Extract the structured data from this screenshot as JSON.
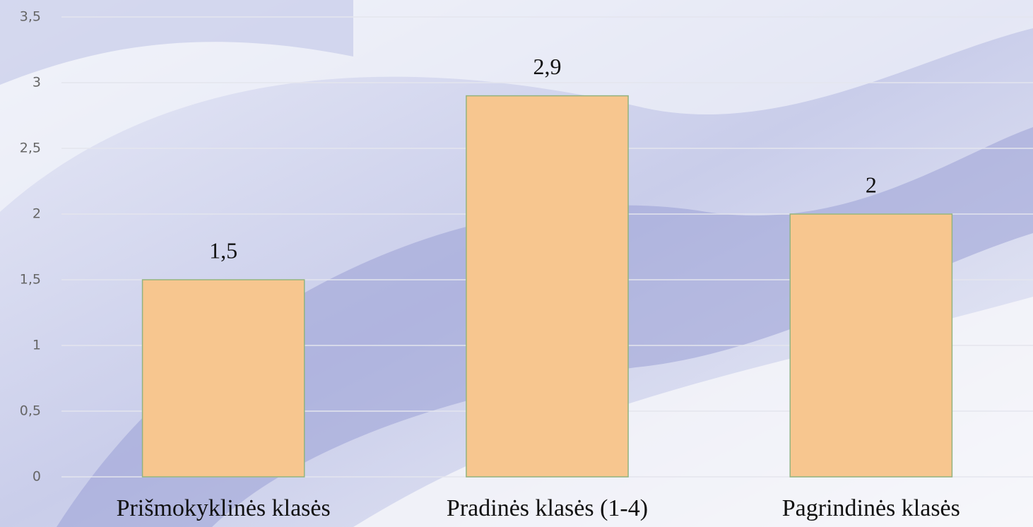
{
  "chart_data": {
    "type": "bar",
    "categories": [
      "Prišmokyklinės klasės",
      "Pradinės klasės (1-4)",
      "Pagrindinės klasės"
    ],
    "values": [
      1.5,
      2.9,
      2
    ],
    "value_labels": [
      "1,5",
      "2,9",
      "2"
    ],
    "color": "#f7c68f",
    "ylim": [
      0,
      3.5
    ],
    "yticks": [
      0,
      {
        "value": 0.5,
        "label": "0,5"
      },
      1,
      {
        "value": 1.5,
        "label": "1,5"
      },
      2,
      {
        "value": 2.5,
        "label": "2,5"
      },
      3,
      {
        "value": 3.5,
        "label": "3,5"
      }
    ],
    "grid": true
  }
}
